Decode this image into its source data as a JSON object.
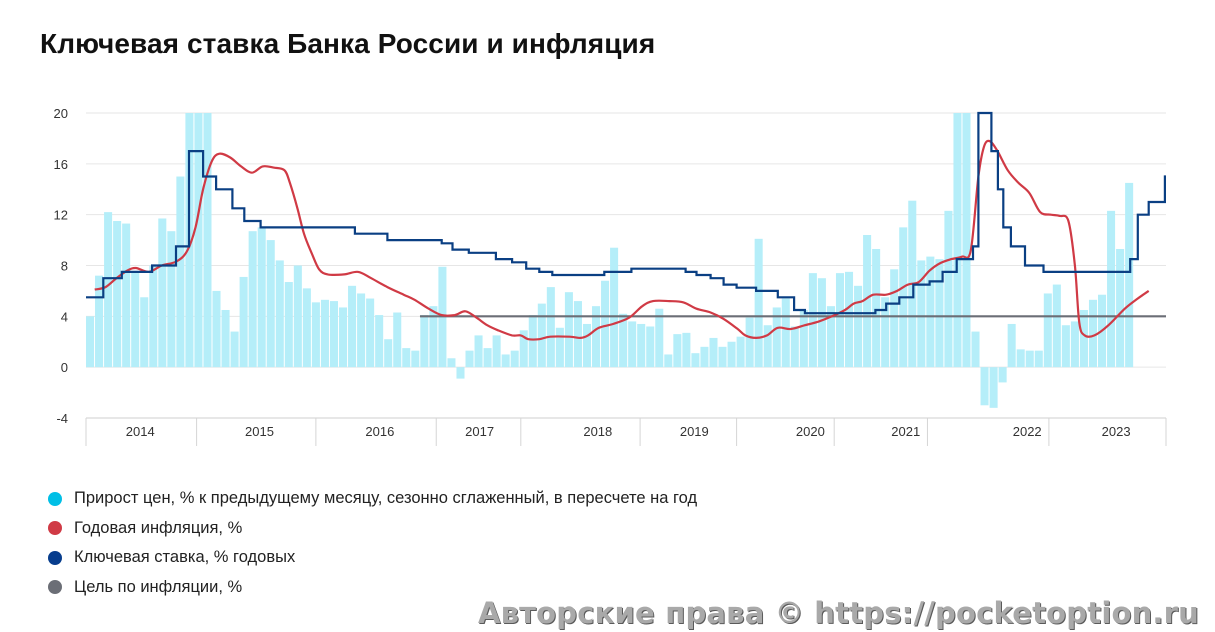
{
  "page_title": "Ключевая ставка Банка России и инфляция",
  "watermark": "Авторские права © https://pocketoption.ru",
  "chart_data": {
    "type": "bar+line",
    "title": "Ключевая ставка Банка России и инфляция",
    "ylim": [
      -4,
      20
    ],
    "yticks": [
      20,
      16,
      12,
      8,
      4,
      0,
      -4
    ],
    "xlim": [
      2013.92,
      2023.88
    ],
    "year_ticks": [
      {
        "label": "2014",
        "x": 2014.42
      },
      {
        "label": "2015",
        "x": 2015.52
      },
      {
        "label": "2016",
        "x": 2016.63
      },
      {
        "label": "2017",
        "x": 2017.55
      },
      {
        "label": "2018",
        "x": 2018.64
      },
      {
        "label": "2019",
        "x": 2019.53
      },
      {
        "label": "2020",
        "x": 2020.6
      },
      {
        "label": "2021",
        "x": 2021.48
      },
      {
        "label": "2022",
        "x": 2022.6
      },
      {
        "label": "2023",
        "x": 2023.42
      }
    ],
    "year_boundaries": [
      2013.92,
      2014.94,
      2016.04,
      2017.15,
      2017.93,
      2019.03,
      2019.92,
      2020.82,
      2021.68,
      2022.8,
      2023.88
    ],
    "series": [
      {
        "name": "Прирост цен, % к предыдущему месяцу, сезонно сглаженный, в пересчете на год",
        "type": "bar",
        "color": "#b5eef9",
        "legend_color": "#00bfe6",
        "start": 2013.92,
        "step": 0.08333,
        "values": [
          4,
          7.2,
          12.2,
          11.5,
          11.3,
          7.5,
          5.5,
          8,
          11.7,
          10.7,
          15,
          20,
          20,
          20,
          6,
          4.5,
          2.8,
          7.1,
          10.7,
          11,
          10,
          8.4,
          6.7,
          8,
          6.2,
          5.1,
          5.3,
          5.2,
          4.7,
          6.4,
          5.8,
          5.4,
          4.1,
          2.2,
          4.3,
          1.5,
          1.3,
          4.1,
          4.8,
          7.9,
          0.7,
          -0.9,
          1.3,
          2.5,
          1.5,
          2.5,
          1,
          1.3,
          2.9,
          4.1,
          5,
          6.3,
          3.1,
          5.9,
          5.2,
          3.4,
          4.8,
          6.8,
          9.4,
          4.2,
          3.6,
          3.4,
          3.2,
          4.6,
          1,
          2.6,
          2.7,
          1.1,
          1.6,
          2.3,
          1.6,
          2,
          2.4,
          3.9,
          10.1,
          3.3,
          4.7,
          5.4,
          3.2,
          4.5,
          7.4,
          7,
          4.8,
          7.4,
          7.5,
          6.4,
          10.4,
          9.3,
          5.5,
          7.7,
          11,
          13.1,
          8.4,
          8.7,
          8.5,
          12.3,
          20,
          20,
          2.8,
          -3,
          -3.2,
          -1.2,
          3.4,
          1.4,
          1.3,
          1.3,
          5.8,
          6.5,
          3.3,
          3.6,
          4.5,
          5.3,
          5.7,
          12.3,
          9.3,
          14.5
        ]
      },
      {
        "name": "Годовая инфляция, %",
        "type": "line",
        "color": "#d03a45",
        "points": [
          [
            2014.0,
            6.1
          ],
          [
            2014.1,
            6.3
          ],
          [
            2014.2,
            7.0
          ],
          [
            2014.3,
            7.6
          ],
          [
            2014.38,
            7.8
          ],
          [
            2014.5,
            7.5
          ],
          [
            2014.62,
            8.0
          ],
          [
            2014.75,
            8.3
          ],
          [
            2014.85,
            9.1
          ],
          [
            2014.93,
            11.0
          ],
          [
            2015.0,
            14.0
          ],
          [
            2015.08,
            16.2
          ],
          [
            2015.15,
            16.8
          ],
          [
            2015.25,
            16.5
          ],
          [
            2015.35,
            15.8
          ],
          [
            2015.45,
            15.3
          ],
          [
            2015.55,
            15.8
          ],
          [
            2015.65,
            15.7
          ],
          [
            2015.75,
            15.5
          ],
          [
            2015.8,
            14.5
          ],
          [
            2015.87,
            12.5
          ],
          [
            2015.93,
            10.5
          ],
          [
            2016.0,
            9.0
          ],
          [
            2016.07,
            7.7
          ],
          [
            2016.15,
            7.3
          ],
          [
            2016.3,
            7.3
          ],
          [
            2016.43,
            7.5
          ],
          [
            2016.55,
            7.0
          ],
          [
            2016.7,
            6.3
          ],
          [
            2016.85,
            5.7
          ],
          [
            2016.95,
            5.3
          ],
          [
            2017.08,
            4.6
          ],
          [
            2017.2,
            4.1
          ],
          [
            2017.32,
            4.1
          ],
          [
            2017.42,
            4.4
          ],
          [
            2017.52,
            3.9
          ],
          [
            2017.62,
            3.3
          ],
          [
            2017.72,
            2.9
          ],
          [
            2017.85,
            2.5
          ],
          [
            2017.93,
            2.5
          ],
          [
            2018.0,
            2.2
          ],
          [
            2018.1,
            2.2
          ],
          [
            2018.2,
            2.4
          ],
          [
            2018.38,
            2.4
          ],
          [
            2018.48,
            2.3
          ],
          [
            2018.55,
            2.5
          ],
          [
            2018.65,
            3.1
          ],
          [
            2018.78,
            3.4
          ],
          [
            2018.93,
            3.9
          ],
          [
            2019.05,
            4.8
          ],
          [
            2019.15,
            5.2
          ],
          [
            2019.3,
            5.2
          ],
          [
            2019.43,
            5.1
          ],
          [
            2019.55,
            4.6
          ],
          [
            2019.68,
            4.3
          ],
          [
            2019.8,
            3.8
          ],
          [
            2019.93,
            3.0
          ],
          [
            2020.0,
            2.5
          ],
          [
            2020.1,
            2.3
          ],
          [
            2020.2,
            2.5
          ],
          [
            2020.3,
            3.1
          ],
          [
            2020.42,
            3.0
          ],
          [
            2020.55,
            3.3
          ],
          [
            2020.68,
            3.6
          ],
          [
            2020.8,
            4.0
          ],
          [
            2020.92,
            4.5
          ],
          [
            2021.0,
            5.0
          ],
          [
            2021.08,
            5.2
          ],
          [
            2021.18,
            5.7
          ],
          [
            2021.3,
            5.7
          ],
          [
            2021.4,
            6.0
          ],
          [
            2021.5,
            6.5
          ],
          [
            2021.6,
            6.7
          ],
          [
            2021.7,
            7.6
          ],
          [
            2021.8,
            8.2
          ],
          [
            2021.9,
            8.5
          ],
          [
            2022.0,
            8.7
          ],
          [
            2022.08,
            9.2
          ],
          [
            2022.15,
            15.0
          ],
          [
            2022.2,
            17.3
          ],
          [
            2022.25,
            17.8
          ],
          [
            2022.32,
            17.1
          ],
          [
            2022.42,
            15.5
          ],
          [
            2022.52,
            14.5
          ],
          [
            2022.62,
            13.7
          ],
          [
            2022.72,
            12.2
          ],
          [
            2022.82,
            12.0
          ],
          [
            2022.9,
            11.9
          ],
          [
            2022.98,
            11.5
          ],
          [
            2023.04,
            8.0
          ],
          [
            2023.08,
            3.5
          ],
          [
            2023.13,
            2.5
          ],
          [
            2023.22,
            2.5
          ],
          [
            2023.35,
            3.3
          ],
          [
            2023.5,
            4.6
          ],
          [
            2023.62,
            5.4
          ],
          [
            2023.72,
            6.0
          ]
        ]
      },
      {
        "name": "Ключевая ставка, % годовых",
        "type": "step",
        "color": "#0a3f83",
        "legend_color": "#073d8d",
        "start": 2013.92,
        "changes": [
          [
            2014.08,
            7.0
          ],
          [
            2014.25,
            7.5
          ],
          [
            2014.53,
            8.0
          ],
          [
            2014.75,
            9.5
          ],
          [
            2014.87,
            17.0
          ],
          [
            2015.0,
            15.0
          ],
          [
            2015.12,
            14.0
          ],
          [
            2015.27,
            12.5
          ],
          [
            2015.38,
            11.5
          ],
          [
            2015.53,
            11.0
          ],
          [
            2016.4,
            10.5
          ],
          [
            2016.7,
            10.0
          ],
          [
            2017.2,
            9.75
          ],
          [
            2017.3,
            9.25
          ],
          [
            2017.45,
            9.0
          ],
          [
            2017.7,
            8.5
          ],
          [
            2017.85,
            8.25
          ],
          [
            2017.98,
            7.75
          ],
          [
            2018.1,
            7.5
          ],
          [
            2018.22,
            7.25
          ],
          [
            2018.7,
            7.5
          ],
          [
            2018.95,
            7.75
          ],
          [
            2019.45,
            7.5
          ],
          [
            2019.55,
            7.25
          ],
          [
            2019.68,
            7.0
          ],
          [
            2019.8,
            6.5
          ],
          [
            2019.92,
            6.25
          ],
          [
            2020.1,
            6.0
          ],
          [
            2020.3,
            5.5
          ],
          [
            2020.45,
            4.5
          ],
          [
            2020.55,
            4.25
          ],
          [
            2021.2,
            4.5
          ],
          [
            2021.3,
            5.0
          ],
          [
            2021.42,
            5.5
          ],
          [
            2021.55,
            6.5
          ],
          [
            2021.7,
            6.75
          ],
          [
            2021.82,
            7.5
          ],
          [
            2021.95,
            8.5
          ],
          [
            2022.1,
            9.5
          ],
          [
            2022.15,
            20.0
          ],
          [
            2022.27,
            17.0
          ],
          [
            2022.33,
            14.0
          ],
          [
            2022.38,
            11.0
          ],
          [
            2022.45,
            9.5
          ],
          [
            2022.58,
            8.0
          ],
          [
            2022.75,
            7.5
          ],
          [
            2023.55,
            8.5
          ],
          [
            2023.62,
            12.0
          ],
          [
            2023.72,
            13.0
          ],
          [
            2023.87,
            15.0
          ]
        ],
        "end": 2023.88
      },
      {
        "name": "Цель по инфляции, %",
        "type": "hline",
        "color": "#6b6e76",
        "from": 2017.0,
        "to": 2023.88,
        "value": 4
      }
    ]
  }
}
